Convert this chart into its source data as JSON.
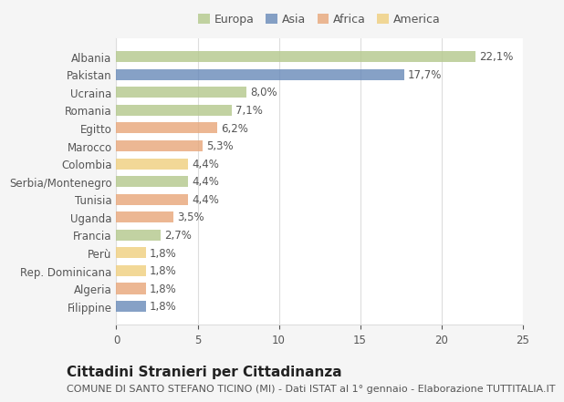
{
  "countries": [
    "Albania",
    "Pakistan",
    "Ucraina",
    "Romania",
    "Egitto",
    "Marocco",
    "Colombia",
    "Serbia/Montenegro",
    "Tunisia",
    "Uganda",
    "Francia",
    "Perù",
    "Rep. Dominicana",
    "Algeria",
    "Filippine"
  ],
  "values": [
    22.1,
    17.7,
    8.0,
    7.1,
    6.2,
    5.3,
    4.4,
    4.4,
    4.4,
    3.5,
    2.7,
    1.8,
    1.8,
    1.8,
    1.8
  ],
  "labels": [
    "22,1%",
    "17,7%",
    "8,0%",
    "7,1%",
    "6,2%",
    "5,3%",
    "4,4%",
    "4,4%",
    "4,4%",
    "3,5%",
    "2,7%",
    "1,8%",
    "1,8%",
    "1,8%",
    "1,8%"
  ],
  "continents": [
    "Europa",
    "Asia",
    "Europa",
    "Europa",
    "Africa",
    "Africa",
    "America",
    "Europa",
    "Africa",
    "Africa",
    "Europa",
    "America",
    "America",
    "Africa",
    "Asia"
  ],
  "continent_colors": {
    "Europa": "#b5c98e",
    "Asia": "#6b8cba",
    "Africa": "#e8a87c",
    "America": "#f0d080"
  },
  "legend_order": [
    "Europa",
    "Asia",
    "Africa",
    "America"
  ],
  "title": "Cittadini Stranieri per Cittadinanza",
  "subtitle": "COMUNE DI SANTO STEFANO TICINO (MI) - Dati ISTAT al 1° gennaio - Elaborazione TUTTITALIA.IT",
  "xlim": [
    0,
    25
  ],
  "xticks": [
    0,
    5,
    10,
    15,
    20,
    25
  ],
  "background_color": "#f5f5f5",
  "bar_background": "#ffffff",
  "grid_color": "#dddddd",
  "text_color": "#555555",
  "title_fontsize": 11,
  "subtitle_fontsize": 8,
  "label_fontsize": 8.5,
  "tick_fontsize": 8.5
}
